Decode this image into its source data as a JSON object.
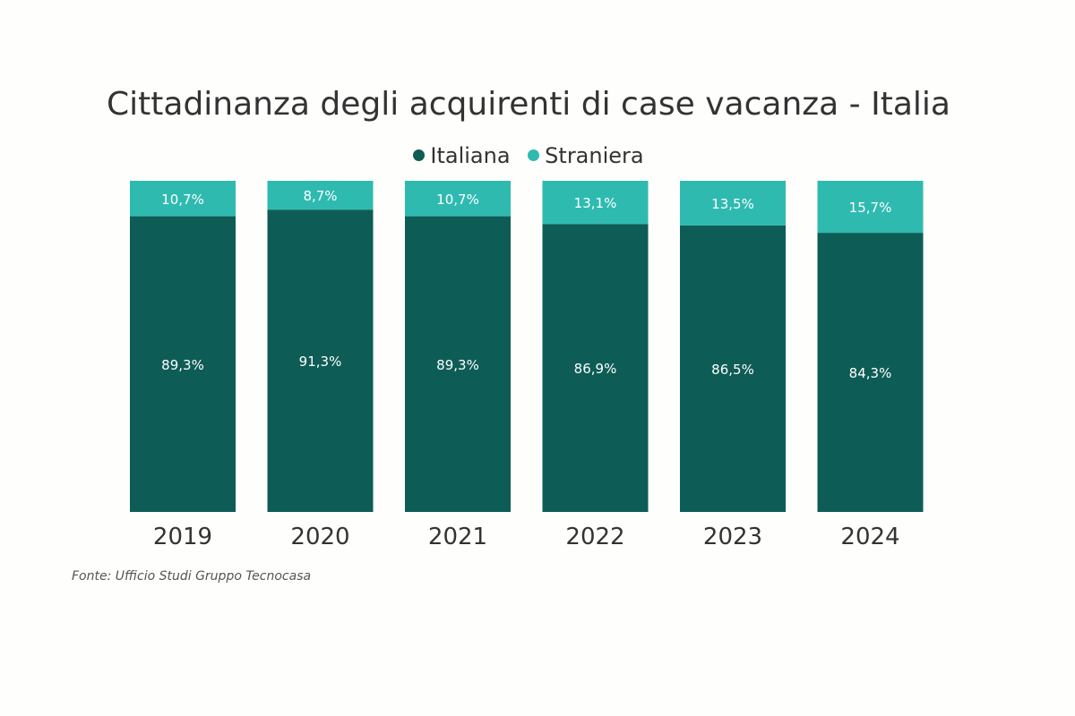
{
  "chart_data": {
    "type": "bar",
    "stacked": true,
    "normalized_percent": true,
    "title": "Cittadinanza degli acquirenti di case vacanza - Italia",
    "categories": [
      "2019",
      "2020",
      "2021",
      "2022",
      "2023",
      "2024"
    ],
    "series": [
      {
        "name": "Italiana",
        "color": "#0e5c56",
        "values": [
          89.3,
          91.3,
          89.3,
          86.9,
          86.5,
          84.3
        ],
        "labels": [
          "89,3%",
          "91,3%",
          "89,3%",
          "86,9%",
          "86,5%",
          "84,3%"
        ]
      },
      {
        "name": "Straniera",
        "color": "#2fbab0",
        "values": [
          10.7,
          8.7,
          10.7,
          13.1,
          13.5,
          15.7
        ],
        "labels": [
          "10,7%",
          "8,7%",
          "10,7%",
          "13,1%",
          "13,5%",
          "15,7%"
        ]
      }
    ],
    "ylim": [
      0,
      100
    ],
    "legend_position": "top-center",
    "grid": false
  },
  "source_note": "Fonte: Ufficio Studi Gruppo Tecnocasa"
}
